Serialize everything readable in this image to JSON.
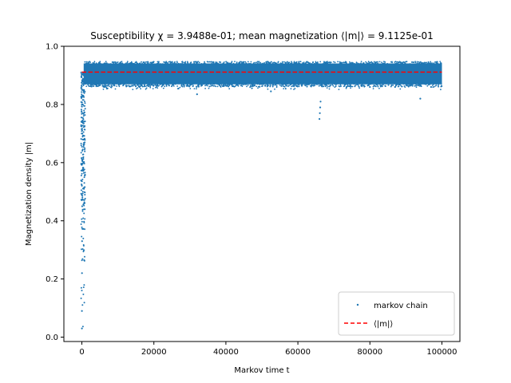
{
  "chart_data": {
    "type": "scatter",
    "title": "Susceptibility χ = 3.9488e-01; mean magnetization ⟨|m|⟩ = 9.1125e-01",
    "xlabel": "Markov time t",
    "ylabel": "Magnetization density |m|",
    "xlim": [
      -5000,
      105000
    ],
    "ylim": [
      -0.015,
      1.0
    ],
    "xticks": [
      0,
      20000,
      40000,
      60000,
      80000,
      100000
    ],
    "xtick_labels": [
      "0",
      "20000",
      "40000",
      "60000",
      "80000",
      "100000"
    ],
    "yticks": [
      0.0,
      0.2,
      0.4,
      0.6,
      0.8,
      1.0
    ],
    "ytick_labels": [
      "0.0",
      "0.2",
      "0.4",
      "0.6",
      "0.8",
      "1.0"
    ],
    "grid": false,
    "legend_position": "lower-right",
    "series": [
      {
        "name": "markov chain",
        "style": "points",
        "color": "#1f77b4",
        "n_samples": 100000,
        "burn_in": {
          "t_end": 700,
          "points": [
            [
              5,
              0.03
            ],
            [
              20,
              0.09
            ],
            [
              40,
              0.22
            ],
            [
              60,
              0.33
            ],
            [
              80,
              0.45
            ],
            [
              100,
              0.61
            ],
            [
              120,
              0.7
            ],
            [
              160,
              0.74
            ],
            [
              200,
              0.8
            ],
            [
              260,
              0.85
            ],
            [
              330,
              0.88
            ],
            [
              500,
              0.9
            ],
            [
              700,
              0.91
            ]
          ]
        },
        "equilibrium": {
          "band_min": 0.865,
          "band_max": 0.945,
          "outliers": [
            [
              6300,
              0.86
            ],
            [
              7100,
              0.855
            ],
            [
              8500,
              0.87
            ],
            [
              16000,
              0.86
            ],
            [
              21000,
              0.865
            ],
            [
              32000,
              0.835
            ],
            [
              52500,
              0.845
            ],
            [
              66000,
              0.75
            ],
            [
              66100,
              0.77
            ],
            [
              66200,
              0.79
            ],
            [
              66300,
              0.81
            ],
            [
              73500,
              0.86
            ],
            [
              80000,
              0.86
            ],
            [
              87000,
              0.86
            ],
            [
              93500,
              0.87
            ],
            [
              94000,
              0.82
            ],
            [
              97000,
              0.86
            ]
          ]
        }
      },
      {
        "name": "⟨|m|⟩",
        "style": "dashed-line",
        "color": "#ff0000",
        "value": 0.91125,
        "x_range": [
          0,
          100000
        ]
      }
    ]
  }
}
